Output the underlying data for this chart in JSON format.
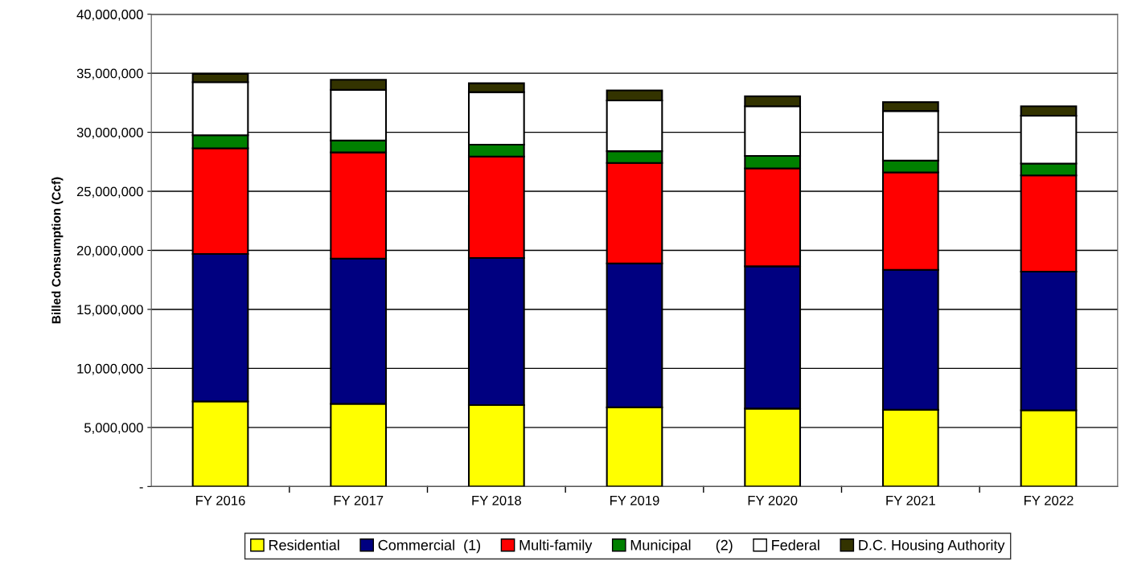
{
  "chart_data": {
    "type": "bar",
    "stacked": true,
    "ylabel": "Billed Consumption (Ccf)",
    "categories": [
      "FY 2016",
      "FY 2017",
      "FY 2018",
      "FY 2019",
      "FY 2020",
      "FY 2021",
      "FY 2022"
    ],
    "series": [
      {
        "name": "Residential",
        "color": "#ffff00",
        "values": [
          7200000,
          7000000,
          6900000,
          6700000,
          6600000,
          6500000,
          6450000
        ]
      },
      {
        "name": "Commercial  (1)",
        "color": "#000080",
        "values": [
          12500000,
          12300000,
          12450000,
          12200000,
          12050000,
          11850000,
          11750000
        ]
      },
      {
        "name": "Multi-family",
        "color": "#ff0000",
        "values": [
          8950000,
          9000000,
          8600000,
          8500000,
          8300000,
          8250000,
          8150000
        ]
      },
      {
        "name": "Municipal      (2)",
        "color": "#008000",
        "values": [
          1100000,
          1000000,
          1000000,
          1000000,
          1050000,
          1000000,
          1000000
        ]
      },
      {
        "name": "Federal",
        "color": "#ffffff",
        "values": [
          4500000,
          4300000,
          4450000,
          4300000,
          4200000,
          4200000,
          4050000
        ]
      },
      {
        "name": "D.C. Housing Authority",
        "color": "#333300",
        "values": [
          700000,
          850000,
          750000,
          850000,
          850000,
          750000,
          800000
        ]
      }
    ],
    "ylim": [
      0,
      40000000
    ],
    "yticks": [
      {
        "value": 0,
        "label": "-"
      },
      {
        "value": 5000000,
        "label": "5,000,000"
      },
      {
        "value": 10000000,
        "label": "10,000,000"
      },
      {
        "value": 15000000,
        "label": "15,000,000"
      },
      {
        "value": 20000000,
        "label": "20,000,000"
      },
      {
        "value": 25000000,
        "label": "25,000,000"
      },
      {
        "value": 30000000,
        "label": "30,000,000"
      },
      {
        "value": 35000000,
        "label": "35,000,000"
      },
      {
        "value": 40000000,
        "label": "40,000,000"
      }
    ],
    "grid": "y",
    "legend": "bottom"
  }
}
